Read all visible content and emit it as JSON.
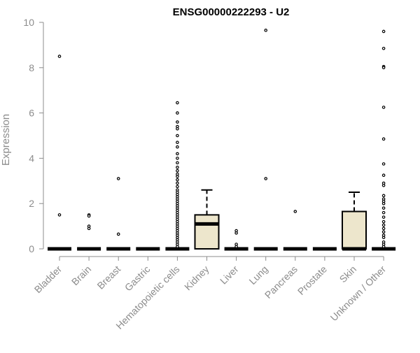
{
  "colors": {
    "box_fill": "#ede6cc",
    "box_stroke": "#000000",
    "median": "#000000",
    "axis": "#8c8c8c",
    "text": "#8c8c8c",
    "title": "#000000"
  },
  "chart_data": {
    "type": "box",
    "title": "ENSG00000222293 - U2",
    "xlabel": "",
    "ylabel": "Expression",
    "ylim": [
      0,
      10
    ],
    "yticks": [
      0,
      2,
      4,
      6,
      8,
      10
    ],
    "grid": false,
    "categories": [
      "Bladder",
      "Brain",
      "Breast",
      "Gastric",
      "Hematopoietic cells",
      "Kidney",
      "Liver",
      "Lung",
      "Pancreas",
      "Prostate",
      "Skin",
      "Unknown / Other"
    ],
    "boxes": [
      {
        "q1": 0,
        "median": 0,
        "q3": 0,
        "whisker_low": 0,
        "whisker_high": 0,
        "outliers": [
          8.5,
          1.5
        ]
      },
      {
        "q1": 0,
        "median": 0,
        "q3": 0,
        "whisker_low": 0,
        "whisker_high": 0,
        "outliers": [
          1.5,
          1.45,
          1.0,
          0.9
        ]
      },
      {
        "q1": 0,
        "median": 0,
        "q3": 0,
        "whisker_low": 0,
        "whisker_high": 0,
        "outliers": [
          3.1,
          0.65
        ]
      },
      {
        "q1": 0,
        "median": 0,
        "q3": 0,
        "whisker_low": 0,
        "whisker_high": 0,
        "outliers": []
      },
      {
        "q1": 0,
        "median": 0,
        "q3": 0,
        "whisker_low": 0,
        "whisker_high": 0,
        "outliers": [
          6.45,
          6.0,
          5.6,
          5.4,
          5.3,
          5.0,
          4.7,
          4.5,
          4.2,
          4.0,
          3.8,
          3.6,
          3.45,
          3.3,
          3.2,
          3.05,
          2.9,
          2.75,
          2.6,
          2.5,
          2.4,
          2.3,
          2.2,
          2.1,
          2.0,
          1.9,
          1.8,
          1.7,
          1.6,
          1.5,
          1.4,
          1.3,
          1.2,
          1.1,
          1.0,
          0.9,
          0.8,
          0.7,
          0.6,
          0.5,
          0.4,
          0.3,
          0.2,
          0.1
        ]
      },
      {
        "q1": 0,
        "median": 1.1,
        "q3": 1.5,
        "whisker_low": 0,
        "whisker_high": 2.6,
        "outliers": []
      },
      {
        "q1": 0,
        "median": 0,
        "q3": 0,
        "whisker_low": 0,
        "whisker_high": 0,
        "outliers": [
          0.8,
          0.7,
          0.2,
          0.1
        ]
      },
      {
        "q1": 0,
        "median": 0,
        "q3": 0,
        "whisker_low": 0,
        "whisker_high": 0,
        "outliers": [
          9.65,
          3.1
        ]
      },
      {
        "q1": 0,
        "median": 0,
        "q3": 0,
        "whisker_low": 0,
        "whisker_high": 0,
        "outliers": [
          1.65
        ]
      },
      {
        "q1": 0,
        "median": 0,
        "q3": 0,
        "whisker_low": 0,
        "whisker_high": 0,
        "outliers": []
      },
      {
        "q1": 0,
        "median": 0,
        "q3": 1.65,
        "whisker_low": 0,
        "whisker_high": 2.5,
        "outliers": []
      },
      {
        "q1": 0,
        "median": 0,
        "q3": 0,
        "whisker_low": 0,
        "whisker_high": 0,
        "outliers": [
          9.6,
          8.85,
          8.05,
          8.0,
          6.25,
          4.85,
          3.75,
          3.25,
          2.9,
          2.8,
          2.35,
          2.2,
          2.1,
          2.0,
          1.8,
          1.6,
          1.4,
          1.2,
          1.05,
          0.9,
          0.75,
          0.6,
          0.5,
          0.3,
          0.2,
          0.1
        ]
      }
    ]
  }
}
